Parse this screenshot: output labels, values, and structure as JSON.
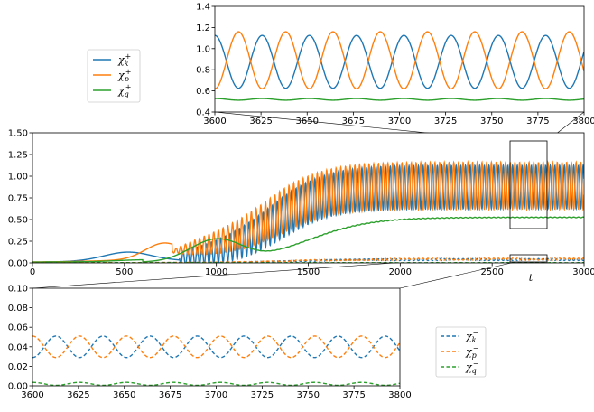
{
  "colors": {
    "blue": "#1f77b4",
    "orange": "#ff7f0e",
    "green": "#2ca02c"
  },
  "chart_data": [
    {
      "id": "top-inset",
      "type": "line",
      "xlim": [
        3600,
        3800
      ],
      "ylim": [
        0.4,
        1.4
      ],
      "xticks": [
        "3600",
        "3625",
        "3650",
        "3675",
        "3700",
        "3725",
        "3750",
        "3775",
        "3800"
      ],
      "yticks": [
        "0.4",
        "0.6",
        "0.8",
        "1.0",
        "1.2",
        "1.4"
      ],
      "period": 25.6,
      "series": [
        {
          "name": "χk+",
          "color": "blue",
          "mean": 0.875,
          "amp": 0.25,
          "phase": 0.0,
          "dash": false
        },
        {
          "name": "χp+",
          "color": "orange",
          "mean": 0.89,
          "amp": 0.27,
          "phase": 3.14159,
          "dash": false
        },
        {
          "name": "χq+",
          "color": "green",
          "mean": 0.52,
          "amp": 0.008,
          "phase": 0.0,
          "dash": false
        }
      ]
    },
    {
      "id": "main",
      "type": "line",
      "xlim": [
        0,
        3000
      ],
      "ylim": [
        0,
        1.5
      ],
      "xlabel": "t",
      "xticks": [
        "0",
        "500",
        "1000",
        "1500",
        "2000",
        "2500",
        "3000"
      ],
      "yticks": [
        "0.00",
        "0.25",
        "0.50",
        "0.75",
        "1.00",
        "1.25",
        "1.50"
      ],
      "series": [
        {
          "name": "χk+",
          "color": "blue",
          "dash": false
        },
        {
          "name": "χp+",
          "color": "orange",
          "dash": false
        },
        {
          "name": "χq+",
          "color": "green",
          "dash": false
        },
        {
          "name": "χk−",
          "color": "blue",
          "dash": true
        },
        {
          "name": "χp−",
          "color": "orange",
          "dash": true
        },
        {
          "name": "χq−",
          "color": "green",
          "dash": true
        }
      ]
    },
    {
      "id": "bottom-inset",
      "type": "line",
      "xlim": [
        3600,
        3800
      ],
      "ylim": [
        0.0,
        0.1
      ],
      "xticks": [
        "3600",
        "3625",
        "3650",
        "3675",
        "3700",
        "3725",
        "3750",
        "3775",
        "3800"
      ],
      "yticks": [
        "0.00",
        "0.02",
        "0.04",
        "0.06",
        "0.08",
        "0.10"
      ],
      "period": 25.6,
      "series": [
        {
          "name": "χk−",
          "color": "blue",
          "mean": 0.04,
          "amp": 0.011,
          "phase": 3.14159,
          "dash": true
        },
        {
          "name": "χp−",
          "color": "orange",
          "mean": 0.04,
          "amp": 0.011,
          "phase": 0.0,
          "dash": true
        },
        {
          "name": "χq−",
          "color": "green",
          "mean": 0.002,
          "amp": 0.0015,
          "phase": 0.0,
          "dash": true
        }
      ]
    }
  ],
  "legend_plus": [
    {
      "sym": "χ",
      "sub": "k",
      "sup": "+"
    },
    {
      "sym": "χ",
      "sub": "p",
      "sup": "+"
    },
    {
      "sym": "χ",
      "sub": "q",
      "sup": "+"
    }
  ],
  "legend_minus": [
    {
      "sym": "χ",
      "sub": "k",
      "sup": "−"
    },
    {
      "sym": "χ",
      "sub": "p",
      "sup": "−"
    },
    {
      "sym": "χ",
      "sub": "q",
      "sup": "−"
    }
  ]
}
